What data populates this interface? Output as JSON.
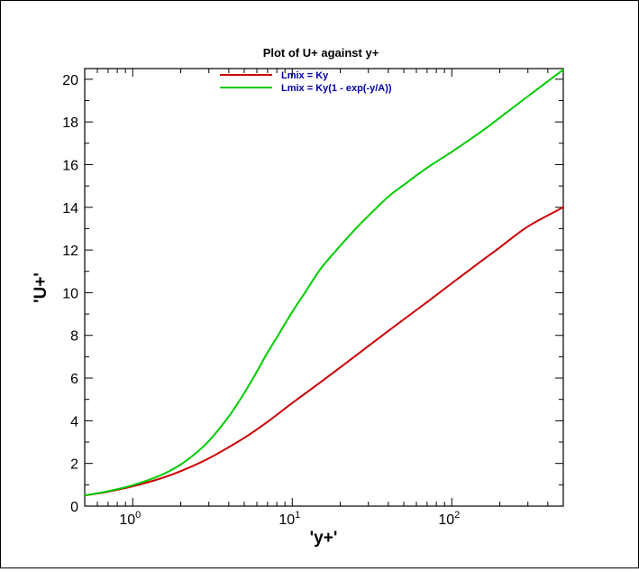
{
  "chart_data": {
    "type": "line",
    "title": "Plot of U+ against y+",
    "xlabel": "'y+'",
    "ylabel": "'U+'",
    "xscale": "log",
    "xlim": [
      0.5,
      500
    ],
    "ylim": [
      0,
      20.5
    ],
    "grid": false,
    "legend_position": "top-center",
    "legend_text_color": "#0000a0",
    "x_ticks": [
      {
        "base": "10",
        "exp": "0",
        "value": 1
      },
      {
        "base": "10",
        "exp": "1",
        "value": 10
      },
      {
        "base": "10",
        "exp": "2",
        "value": 100
      }
    ],
    "y_ticks": [
      "0",
      "2",
      "4",
      "6",
      "8",
      "10",
      "12",
      "14",
      "16",
      "18",
      "20"
    ],
    "series": [
      {
        "name": "Lmix = Ky",
        "color": "#cc0000",
        "x": [
          0.5,
          0.7,
          1,
          1.5,
          2,
          3,
          5,
          7,
          10,
          15,
          20,
          30,
          50,
          70,
          100,
          150,
          200,
          300,
          500
        ],
        "y": [
          0.5,
          0.68,
          0.93,
          1.3,
          1.64,
          2.24,
          3.2,
          3.95,
          4.83,
          5.8,
          6.5,
          7.5,
          8.75,
          9.56,
          10.44,
          11.43,
          12.12,
          13.1,
          14.0
        ]
      },
      {
        "name": "Lmix = Ky(1 - exp(-y/A))",
        "color": "#00cc00",
        "x": [
          0.5,
          0.7,
          1,
          1.5,
          2,
          2.5,
          3,
          4,
          5,
          6,
          7,
          8,
          10,
          12,
          15,
          20,
          25,
          30,
          40,
          50,
          70,
          100,
          150,
          200,
          300,
          500
        ],
        "y": [
          0.5,
          0.7,
          0.98,
          1.45,
          1.95,
          2.5,
          3.05,
          4.2,
          5.3,
          6.3,
          7.2,
          7.9,
          9.1,
          10.0,
          11.1,
          12.2,
          13.0,
          13.6,
          14.5,
          15.05,
          15.85,
          16.6,
          17.5,
          18.2,
          19.2,
          20.45
        ]
      }
    ]
  }
}
